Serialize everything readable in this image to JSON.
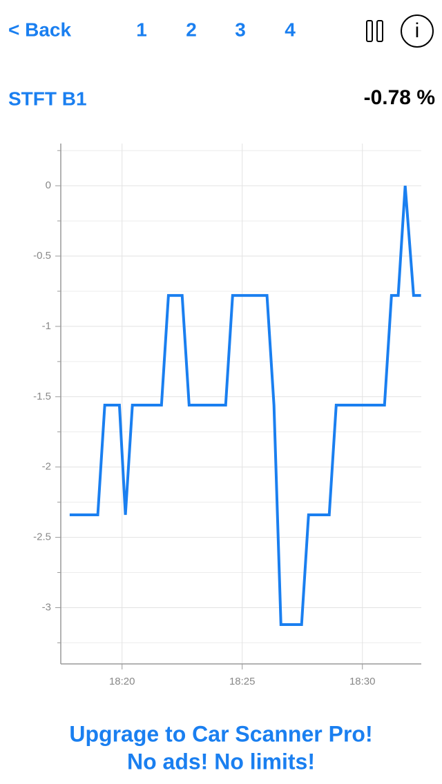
{
  "header": {
    "back": "< Back",
    "tabs": [
      "1",
      "2",
      "3",
      "4"
    ],
    "info": "i"
  },
  "sensor": {
    "name": "STFT B1",
    "reading": "-0.78 %"
  },
  "chart_data": {
    "type": "line",
    "x": [
      17.82,
      18.99,
      19.28,
      19.89,
      20.14,
      20.43,
      21.64,
      21.93,
      22.5,
      22.79,
      24.31,
      24.6,
      26.03,
      26.32,
      26.61,
      27.47,
      27.76,
      28.62,
      28.91,
      30.92,
      31.21,
      31.49,
      31.78,
      32.13,
      32.44
    ],
    "series": [
      {
        "color": "#1a7ff0",
        "values": [
          -2.34,
          -2.34,
          -1.56,
          -1.56,
          -2.34,
          -1.56,
          -1.56,
          -0.78,
          -0.78,
          -1.56,
          -1.56,
          -0.78,
          -0.78,
          -1.56,
          -3.12,
          -3.12,
          -2.34,
          -2.34,
          -1.56,
          -1.56,
          -0.78,
          -0.78,
          0,
          -0.78,
          -0.78
        ]
      }
    ],
    "xlim": [
      17.45,
      32.45
    ],
    "xticks": [
      {
        "value": 20,
        "label": "18:20"
      },
      {
        "value": 25,
        "label": "18:25"
      },
      {
        "value": 30,
        "label": "18:30"
      }
    ],
    "ylim": [
      -3.4,
      0.3
    ],
    "yticks": [
      0,
      -0.5,
      -1,
      -1.5,
      -2,
      -2.5,
      -3
    ],
    "yminor": [
      0.25,
      -0.25,
      -0.75,
      -1.25,
      -1.75,
      -2.25,
      -2.75,
      -3.25
    ],
    "grid": true
  },
  "footer": {
    "line1": "Upgrage to Car Scanner Pro!",
    "line2": "No ads! No limits!"
  }
}
